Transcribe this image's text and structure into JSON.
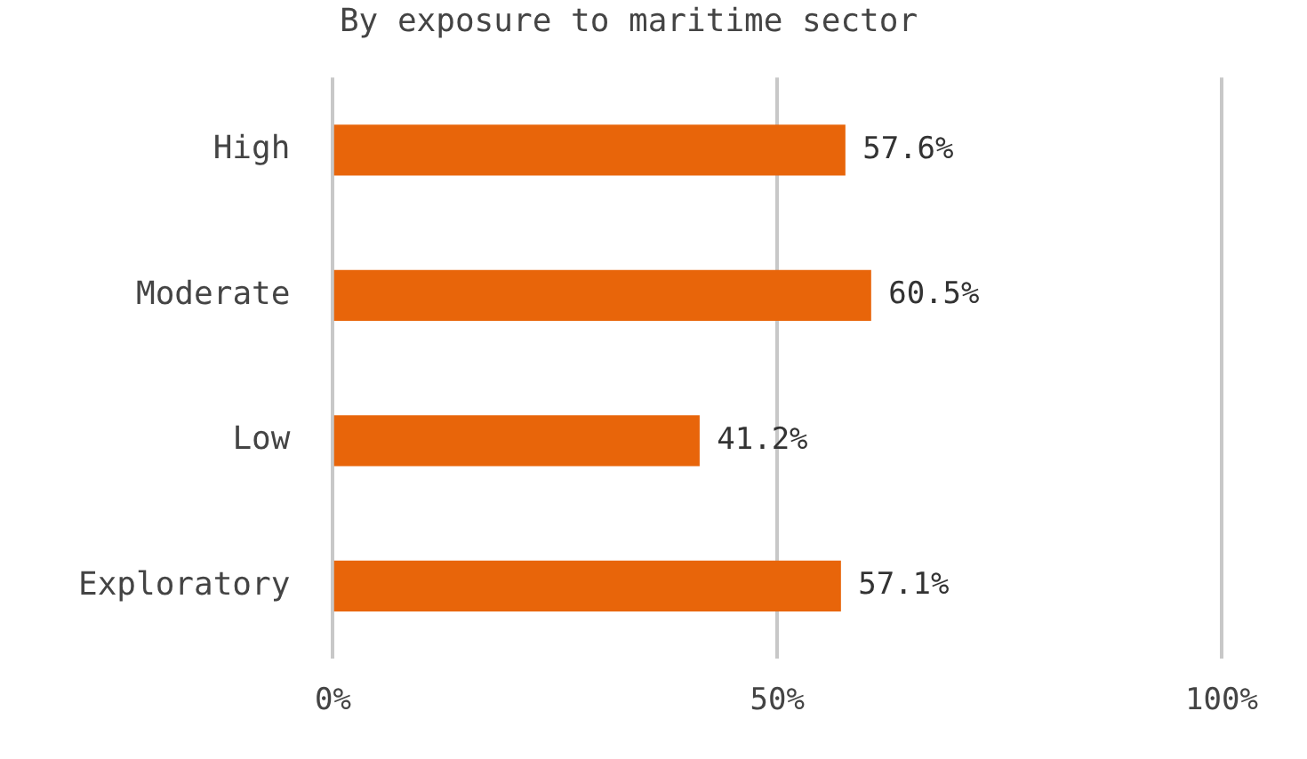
{
  "chart_data": {
    "type": "bar",
    "title": "By exposure to maritime sector",
    "orientation": "horizontal",
    "categories": [
      "High",
      "Moderate",
      "Low",
      "Exploratory"
    ],
    "series": [
      {
        "color": "#e8650a",
        "values": [
          57.6,
          60.5,
          41.2,
          57.1
        ],
        "value_labels": [
          "57.6%",
          "60.5%",
          "41.2%",
          "57.1%"
        ]
      }
    ],
    "xlim": [
      0,
      100
    ],
    "xticks": [
      {
        "value": 0,
        "label": "0%"
      },
      {
        "value": 50,
        "label": "50%"
      },
      {
        "value": 100,
        "label": "100%"
      }
    ],
    "grid": "x",
    "legend": false
  }
}
